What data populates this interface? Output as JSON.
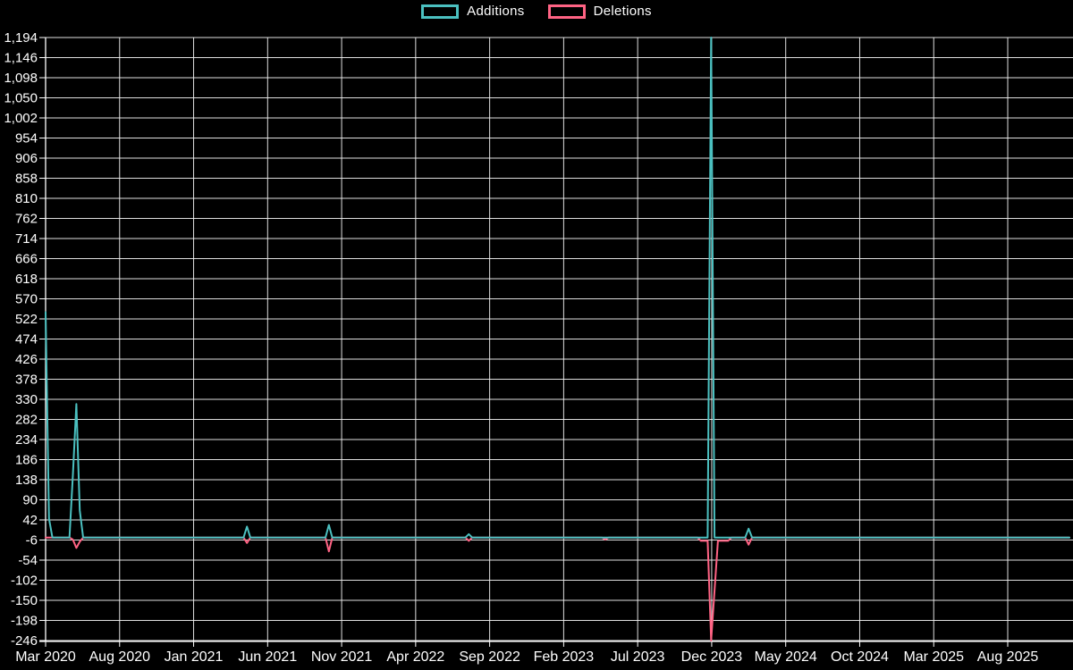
{
  "colors": {
    "background": "#000000",
    "grid": "#f2f2f2",
    "axis": "#ffffff",
    "text": "#ffffff",
    "additions": "#4bc0c0",
    "deletions": "#ff6384"
  },
  "chart_data": {
    "type": "line",
    "title": "",
    "legend_position": "top",
    "legend": [
      {
        "label": "Additions",
        "color": "#4bc0c0"
      },
      {
        "label": "Deletions",
        "color": "#ff6384"
      }
    ],
    "x_ticks": [
      "Mar 2020",
      "Aug 2020",
      "Jan 2021",
      "Jun 2021",
      "Nov 2021",
      "Apr 2022",
      "Sep 2022",
      "Feb 2023",
      "Jul 2023",
      "Dec 2023",
      "May 2024",
      "Oct 2024",
      "Mar 2025",
      "Aug 2025"
    ],
    "y_tick_labels": [
      "1,194",
      "1,146",
      "1,098",
      "1,050",
      "1,002",
      "954",
      "906",
      "858",
      "810",
      "762",
      "714",
      "666",
      "618",
      "570",
      "522",
      "474",
      "426",
      "378",
      "330",
      "282",
      "234",
      "186",
      "138",
      "90",
      "42",
      "-6",
      "-54",
      "-102",
      "-150",
      "-198",
      "-246"
    ],
    "ylim": [
      -246,
      1194
    ],
    "y_step": 48,
    "grid": true,
    "x_unit": "weeks_since_Mar_2020",
    "weeks_total": 300,
    "points_format": "[week_index, value]",
    "series": [
      {
        "name": "Additions",
        "color": "#4bc0c0",
        "points": [
          [
            0,
            538
          ],
          [
            1,
            45
          ],
          [
            2,
            0
          ],
          [
            7,
            0
          ],
          [
            8,
            149
          ],
          [
            9,
            319
          ],
          [
            10,
            65
          ],
          [
            11,
            0
          ],
          [
            58,
            0
          ],
          [
            59,
            26
          ],
          [
            60,
            0
          ],
          [
            82,
            0
          ],
          [
            83,
            30
          ],
          [
            84,
            0
          ],
          [
            123,
            0
          ],
          [
            124,
            8
          ],
          [
            125,
            0
          ],
          [
            194,
            0
          ],
          [
            195,
            1194
          ],
          [
            196,
            0
          ],
          [
            205,
            0
          ],
          [
            206,
            21
          ],
          [
            207,
            0
          ],
          [
            300,
            0
          ]
        ]
      },
      {
        "name": "Deletions",
        "color": "#ff6384",
        "points": [
          [
            0,
            0
          ],
          [
            7,
            0
          ],
          [
            8,
            -5
          ],
          [
            9,
            -25
          ],
          [
            10,
            -10
          ],
          [
            11,
            0
          ],
          [
            58,
            0
          ],
          [
            59,
            -13
          ],
          [
            60,
            0
          ],
          [
            82,
            0
          ],
          [
            83,
            -33
          ],
          [
            84,
            0
          ],
          [
            123,
            0
          ],
          [
            124,
            -8
          ],
          [
            125,
            0
          ],
          [
            163,
            0
          ],
          [
            164,
            -5
          ],
          [
            165,
            0
          ],
          [
            191,
            0
          ],
          [
            192,
            -8
          ],
          [
            194,
            -8
          ],
          [
            195,
            -246
          ],
          [
            197,
            -8
          ],
          [
            200,
            -8
          ],
          [
            201,
            0
          ],
          [
            205,
            0
          ],
          [
            206,
            -17
          ],
          [
            207,
            0
          ],
          [
            300,
            0
          ]
        ]
      }
    ]
  }
}
